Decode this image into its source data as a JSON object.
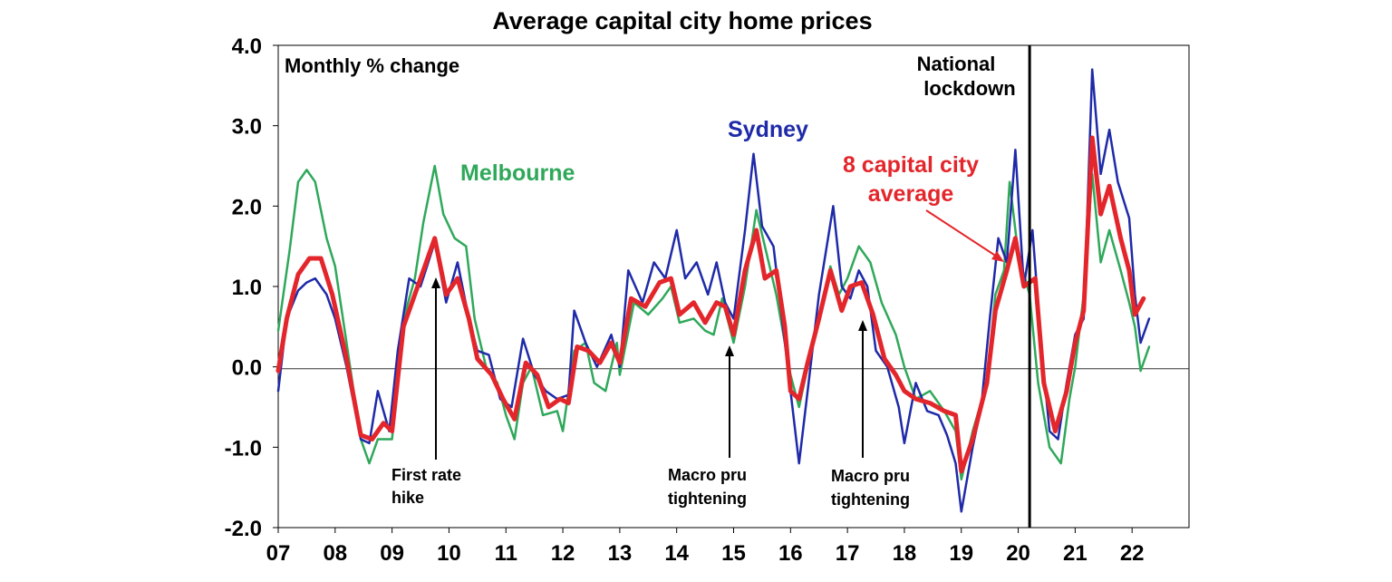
{
  "chart_data": {
    "type": "line",
    "title": "Average capital city home prices",
    "subtitle": "Monthly % change",
    "xlabel": "",
    "ylabel": "",
    "ylim": [
      -2.0,
      4.0
    ],
    "y_ticks": [
      "-2.0",
      "-1.0",
      "0.0",
      "1.0",
      "2.0",
      "3.0",
      "4.0"
    ],
    "x_ticks": [
      "07",
      "08",
      "09",
      "10",
      "11",
      "12",
      "13",
      "14",
      "15",
      "16",
      "17",
      "18",
      "19",
      "20",
      "21",
      "22"
    ],
    "x_start": 2007.0,
    "x_end": 2023.0,
    "grid": false,
    "series": [
      {
        "name": "Melbourne",
        "color": "#2fa85a",
        "points": [
          [
            2007.0,
            0.45
          ],
          [
            2007.2,
            1.45
          ],
          [
            2007.35,
            2.3
          ],
          [
            2007.5,
            2.45
          ],
          [
            2007.65,
            2.3
          ],
          [
            2007.85,
            1.6
          ],
          [
            2008.0,
            1.25
          ],
          [
            2008.2,
            0.3
          ],
          [
            2008.45,
            -0.9
          ],
          [
            2008.6,
            -1.2
          ],
          [
            2008.75,
            -0.9
          ],
          [
            2009.0,
            -0.9
          ],
          [
            2009.2,
            0.6
          ],
          [
            2009.4,
            1.1
          ],
          [
            2009.55,
            1.8
          ],
          [
            2009.75,
            2.5
          ],
          [
            2009.9,
            1.9
          ],
          [
            2010.1,
            1.6
          ],
          [
            2010.3,
            1.5
          ],
          [
            2010.45,
            0.6
          ],
          [
            2010.65,
            0.0
          ],
          [
            2010.85,
            -0.2
          ],
          [
            2011.0,
            -0.6
          ],
          [
            2011.15,
            -0.9
          ],
          [
            2011.3,
            -0.2
          ],
          [
            2011.45,
            0.0
          ],
          [
            2011.65,
            -0.6
          ],
          [
            2011.9,
            -0.55
          ],
          [
            2012.0,
            -0.8
          ],
          [
            2012.2,
            0.2
          ],
          [
            2012.4,
            0.3
          ],
          [
            2012.55,
            -0.2
          ],
          [
            2012.75,
            -0.3
          ],
          [
            2012.95,
            0.3
          ],
          [
            2013.0,
            -0.1
          ],
          [
            2013.25,
            0.8
          ],
          [
            2013.5,
            0.65
          ],
          [
            2013.75,
            0.85
          ],
          [
            2013.9,
            1.0
          ],
          [
            2014.05,
            0.55
          ],
          [
            2014.3,
            0.6
          ],
          [
            2014.5,
            0.45
          ],
          [
            2014.65,
            0.4
          ],
          [
            2014.8,
            0.85
          ],
          [
            2015.0,
            0.3
          ],
          [
            2015.2,
            1.0
          ],
          [
            2015.4,
            1.95
          ],
          [
            2015.55,
            1.5
          ],
          [
            2015.75,
            0.9
          ],
          [
            2016.0,
            -0.1
          ],
          [
            2016.15,
            -0.5
          ],
          [
            2016.3,
            0.0
          ],
          [
            2016.5,
            0.55
          ],
          [
            2016.7,
            1.25
          ],
          [
            2016.85,
            0.9
          ],
          [
            2017.0,
            1.1
          ],
          [
            2017.2,
            1.5
          ],
          [
            2017.4,
            1.3
          ],
          [
            2017.6,
            0.8
          ],
          [
            2017.85,
            0.4
          ],
          [
            2018.0,
            0.0
          ],
          [
            2018.2,
            -0.4
          ],
          [
            2018.45,
            -0.3
          ],
          [
            2018.7,
            -0.55
          ],
          [
            2018.9,
            -0.8
          ],
          [
            2019.0,
            -1.4
          ],
          [
            2019.2,
            -0.8
          ],
          [
            2019.45,
            -0.2
          ],
          [
            2019.6,
            0.9
          ],
          [
            2019.75,
            1.2
          ],
          [
            2019.85,
            2.3
          ],
          [
            2020.0,
            1.4
          ],
          [
            2020.2,
            0.9
          ],
          [
            2020.35,
            -0.2
          ],
          [
            2020.55,
            -1.0
          ],
          [
            2020.75,
            -1.2
          ],
          [
            2020.9,
            -0.4
          ],
          [
            2021.0,
            0.0
          ],
          [
            2021.15,
            0.9
          ],
          [
            2021.3,
            2.4
          ],
          [
            2021.45,
            1.3
          ],
          [
            2021.6,
            1.7
          ],
          [
            2021.8,
            1.2
          ],
          [
            2021.95,
            0.8
          ],
          [
            2022.05,
            0.5
          ],
          [
            2022.15,
            -0.05
          ],
          [
            2022.3,
            0.25
          ]
        ]
      },
      {
        "name": "Sydney",
        "color": "#1f2aa8",
        "points": [
          [
            2007.0,
            -0.3
          ],
          [
            2007.15,
            0.6
          ],
          [
            2007.35,
            0.95
          ],
          [
            2007.5,
            1.05
          ],
          [
            2007.65,
            1.1
          ],
          [
            2007.85,
            0.9
          ],
          [
            2008.0,
            0.6
          ],
          [
            2008.2,
            0.0
          ],
          [
            2008.45,
            -0.9
          ],
          [
            2008.6,
            -0.95
          ],
          [
            2008.75,
            -0.3
          ],
          [
            2008.95,
            -0.8
          ],
          [
            2009.1,
            0.2
          ],
          [
            2009.3,
            1.1
          ],
          [
            2009.5,
            1.0
          ],
          [
            2009.75,
            1.55
          ],
          [
            2009.95,
            0.8
          ],
          [
            2010.15,
            1.3
          ],
          [
            2010.35,
            0.6
          ],
          [
            2010.5,
            0.2
          ],
          [
            2010.7,
            0.15
          ],
          [
            2010.9,
            -0.4
          ],
          [
            2011.1,
            -0.5
          ],
          [
            2011.3,
            0.35
          ],
          [
            2011.5,
            -0.1
          ],
          [
            2011.7,
            -0.3
          ],
          [
            2011.9,
            -0.4
          ],
          [
            2012.1,
            -0.35
          ],
          [
            2012.2,
            0.7
          ],
          [
            2012.4,
            0.3
          ],
          [
            2012.6,
            0.0
          ],
          [
            2012.85,
            0.4
          ],
          [
            2013.0,
            0.0
          ],
          [
            2013.15,
            1.2
          ],
          [
            2013.4,
            0.8
          ],
          [
            2013.6,
            1.3
          ],
          [
            2013.8,
            1.1
          ],
          [
            2014.0,
            1.7
          ],
          [
            2014.15,
            1.1
          ],
          [
            2014.35,
            1.3
          ],
          [
            2014.55,
            0.9
          ],
          [
            2014.7,
            1.3
          ],
          [
            2014.85,
            0.8
          ],
          [
            2015.0,
            0.6
          ],
          [
            2015.2,
            1.7
          ],
          [
            2015.35,
            2.65
          ],
          [
            2015.5,
            1.75
          ],
          [
            2015.7,
            1.5
          ],
          [
            2015.85,
            0.6
          ],
          [
            2016.0,
            -0.3
          ],
          [
            2016.15,
            -1.2
          ],
          [
            2016.3,
            -0.3
          ],
          [
            2016.5,
            0.9
          ],
          [
            2016.75,
            2.0
          ],
          [
            2016.9,
            1.0
          ],
          [
            2017.05,
            0.85
          ],
          [
            2017.2,
            1.2
          ],
          [
            2017.35,
            1.0
          ],
          [
            2017.5,
            0.2
          ],
          [
            2017.7,
            0.0
          ],
          [
            2017.9,
            -0.5
          ],
          [
            2018.0,
            -0.95
          ],
          [
            2018.2,
            -0.2
          ],
          [
            2018.4,
            -0.55
          ],
          [
            2018.6,
            -0.6
          ],
          [
            2018.75,
            -0.85
          ],
          [
            2018.9,
            -1.2
          ],
          [
            2019.0,
            -1.8
          ],
          [
            2019.2,
            -1.0
          ],
          [
            2019.35,
            -0.5
          ],
          [
            2019.5,
            0.6
          ],
          [
            2019.65,
            1.6
          ],
          [
            2019.8,
            1.3
          ],
          [
            2019.95,
            2.7
          ],
          [
            2020.1,
            1.0
          ],
          [
            2020.25,
            1.7
          ],
          [
            2020.4,
            0.3
          ],
          [
            2020.55,
            -0.8
          ],
          [
            2020.7,
            -0.9
          ],
          [
            2020.85,
            -0.2
          ],
          [
            2021.0,
            0.4
          ],
          [
            2021.15,
            0.6
          ],
          [
            2021.3,
            3.7
          ],
          [
            2021.45,
            2.4
          ],
          [
            2021.6,
            2.95
          ],
          [
            2021.75,
            2.3
          ],
          [
            2021.95,
            1.85
          ],
          [
            2022.05,
            0.9
          ],
          [
            2022.15,
            0.3
          ],
          [
            2022.3,
            0.6
          ]
        ]
      },
      {
        "name": "8 capital city average",
        "color": "#e3262b",
        "points": [
          [
            2007.0,
            -0.05
          ],
          [
            2007.15,
            0.6
          ],
          [
            2007.35,
            1.15
          ],
          [
            2007.55,
            1.35
          ],
          [
            2007.75,
            1.35
          ],
          [
            2007.95,
            0.9
          ],
          [
            2008.2,
            0.1
          ],
          [
            2008.45,
            -0.85
          ],
          [
            2008.65,
            -0.9
          ],
          [
            2008.85,
            -0.7
          ],
          [
            2009.0,
            -0.8
          ],
          [
            2009.2,
            0.5
          ],
          [
            2009.45,
            1.0
          ],
          [
            2009.75,
            1.6
          ],
          [
            2009.95,
            0.9
          ],
          [
            2010.15,
            1.1
          ],
          [
            2010.35,
            0.6
          ],
          [
            2010.5,
            0.1
          ],
          [
            2010.75,
            -0.1
          ],
          [
            2010.95,
            -0.4
          ],
          [
            2011.15,
            -0.65
          ],
          [
            2011.35,
            0.05
          ],
          [
            2011.55,
            -0.1
          ],
          [
            2011.75,
            -0.5
          ],
          [
            2011.95,
            -0.4
          ],
          [
            2012.1,
            -0.45
          ],
          [
            2012.25,
            0.25
          ],
          [
            2012.45,
            0.2
          ],
          [
            2012.65,
            0.05
          ],
          [
            2012.85,
            0.3
          ],
          [
            2013.0,
            0.05
          ],
          [
            2013.2,
            0.85
          ],
          [
            2013.45,
            0.75
          ],
          [
            2013.7,
            1.05
          ],
          [
            2013.9,
            1.1
          ],
          [
            2014.05,
            0.65
          ],
          [
            2014.3,
            0.8
          ],
          [
            2014.5,
            0.55
          ],
          [
            2014.7,
            0.8
          ],
          [
            2014.85,
            0.75
          ],
          [
            2015.0,
            0.4
          ],
          [
            2015.2,
            1.2
          ],
          [
            2015.4,
            1.7
          ],
          [
            2015.55,
            1.1
          ],
          [
            2015.75,
            1.2
          ],
          [
            2015.9,
            0.5
          ],
          [
            2016.0,
            -0.3
          ],
          [
            2016.15,
            -0.4
          ],
          [
            2016.3,
            0.05
          ],
          [
            2016.5,
            0.6
          ],
          [
            2016.7,
            1.2
          ],
          [
            2016.9,
            0.7
          ],
          [
            2017.05,
            1.0
          ],
          [
            2017.25,
            1.05
          ],
          [
            2017.45,
            0.65
          ],
          [
            2017.65,
            0.1
          ],
          [
            2017.85,
            -0.1
          ],
          [
            2018.0,
            -0.3
          ],
          [
            2018.2,
            -0.4
          ],
          [
            2018.45,
            -0.45
          ],
          [
            2018.7,
            -0.55
          ],
          [
            2018.9,
            -0.6
          ],
          [
            2019.0,
            -1.3
          ],
          [
            2019.2,
            -0.9
          ],
          [
            2019.45,
            -0.2
          ],
          [
            2019.6,
            0.7
          ],
          [
            2019.8,
            1.2
          ],
          [
            2019.95,
            1.6
          ],
          [
            2020.1,
            1.0
          ],
          [
            2020.3,
            1.1
          ],
          [
            2020.45,
            -0.2
          ],
          [
            2020.65,
            -0.8
          ],
          [
            2020.85,
            -0.3
          ],
          [
            2021.0,
            0.3
          ],
          [
            2021.15,
            0.7
          ],
          [
            2021.3,
            2.85
          ],
          [
            2021.45,
            1.9
          ],
          [
            2021.6,
            2.25
          ],
          [
            2021.8,
            1.6
          ],
          [
            2021.95,
            1.2
          ],
          [
            2022.05,
            0.65
          ],
          [
            2022.2,
            0.85
          ]
        ]
      }
    ],
    "annotations": {
      "sydney": "Sydney",
      "melbourne": "Melbourne",
      "avg_line1": "8 capital city",
      "avg_line2": "average",
      "lockdown_line1": "National",
      "lockdown_line2": "lockdown",
      "hike_line1": "First rate",
      "hike_line2": "hike",
      "pru1_line1": "Macro pru",
      "pru1_line2": "tightening",
      "pru2_line1": "Macro pru",
      "pru2_line2": "tightening"
    },
    "events": {
      "lockdown_x": 2020.2,
      "first_rate_hike_x": 2009.8,
      "macro_pru_1_x": 2014.95,
      "macro_pru_2_x": 2017.25
    }
  }
}
